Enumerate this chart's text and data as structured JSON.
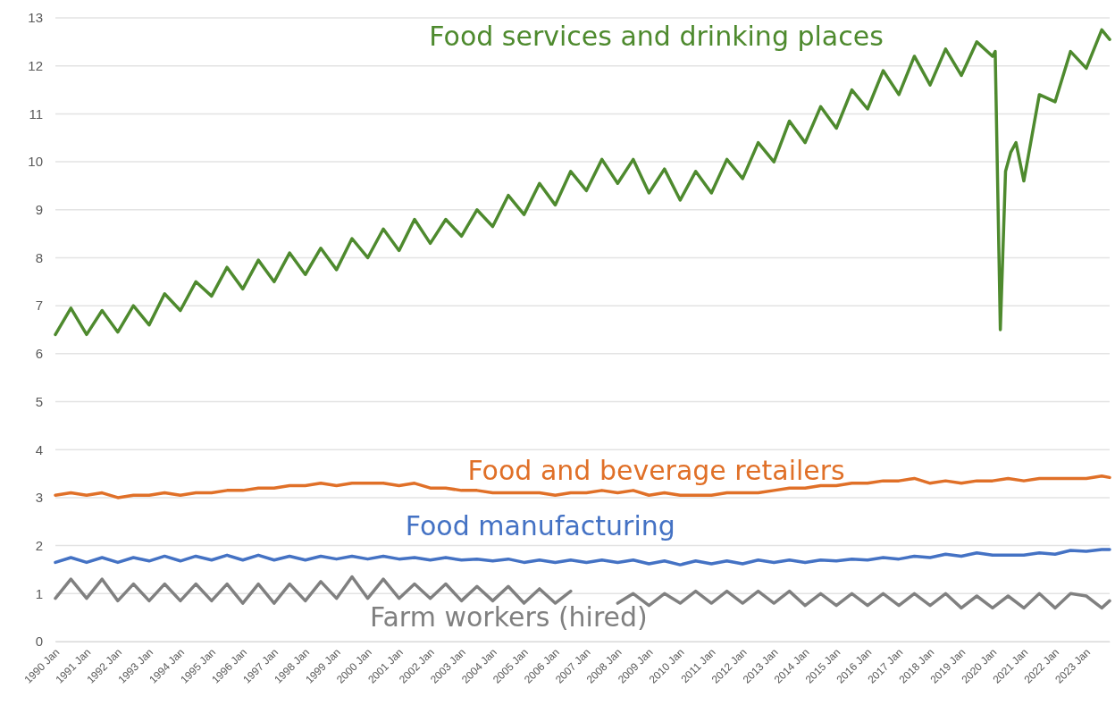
{
  "chart_data": {
    "type": "line",
    "legend": false,
    "grid": "y",
    "line_style": "solid",
    "marker": "none",
    "xlim": [
      "1990-01",
      "2023-10"
    ],
    "ylim": [
      0,
      13
    ],
    "yticks": [
      0,
      1,
      2,
      3,
      4,
      5,
      6,
      7,
      8,
      9,
      10,
      11,
      12,
      13
    ],
    "xticks": [
      {
        "value": "1990-01",
        "label": "1990 Jan"
      },
      {
        "value": "1991-01",
        "label": "1991 Jan"
      },
      {
        "value": "1992-01",
        "label": "1992 Jan"
      },
      {
        "value": "1993-01",
        "label": "1993 Jan"
      },
      {
        "value": "1994-01",
        "label": "1994 Jan"
      },
      {
        "value": "1995-01",
        "label": "1995 Jan"
      },
      {
        "value": "1996-01",
        "label": "1996 Jan"
      },
      {
        "value": "1997-01",
        "label": "1997 Jan"
      },
      {
        "value": "1998-01",
        "label": "1998 Jan"
      },
      {
        "value": "1999-01",
        "label": "1999 Jan"
      },
      {
        "value": "2000-01",
        "label": "2000 Jan"
      },
      {
        "value": "2001-01",
        "label": "2001 Jan"
      },
      {
        "value": "2002-01",
        "label": "2002 Jan"
      },
      {
        "value": "2003-01",
        "label": "2003 Jan"
      },
      {
        "value": "2004-01",
        "label": "2004 Jan"
      },
      {
        "value": "2005-01",
        "label": "2005 Jan"
      },
      {
        "value": "2006-01",
        "label": "2006 Jan"
      },
      {
        "value": "2007-01",
        "label": "2007 Jan"
      },
      {
        "value": "2008-01",
        "label": "2008 Jan"
      },
      {
        "value": "2009-01",
        "label": "2009 Jan"
      },
      {
        "value": "2010-01",
        "label": "2010 Jan"
      },
      {
        "value": "2011-01",
        "label": "2011 Jan"
      },
      {
        "value": "2012-01",
        "label": "2012 Jan"
      },
      {
        "value": "2013-01",
        "label": "2013 Jan"
      },
      {
        "value": "2014-01",
        "label": "2014 Jan"
      },
      {
        "value": "2015-01",
        "label": "2015 Jan"
      },
      {
        "value": "2016-01",
        "label": "2016 Jan"
      },
      {
        "value": "2017-01",
        "label": "2017 Jan"
      },
      {
        "value": "2018-01",
        "label": "2018 Jan"
      },
      {
        "value": "2019-01",
        "label": "2019 Jan"
      },
      {
        "value": "2020-01",
        "label": "2020 Jan"
      },
      {
        "value": "2021-01",
        "label": "2021 Jan"
      },
      {
        "value": "2022-01",
        "label": "2022 Jan"
      },
      {
        "value": "2023-01",
        "label": "2023 Jan"
      }
    ],
    "x": [
      "1990-01",
      "1990-07",
      "1991-01",
      "1991-07",
      "1992-01",
      "1992-07",
      "1993-01",
      "1993-07",
      "1994-01",
      "1994-07",
      "1995-01",
      "1995-07",
      "1996-01",
      "1996-07",
      "1997-01",
      "1997-07",
      "1998-01",
      "1998-07",
      "1999-01",
      "1999-07",
      "2000-01",
      "2000-07",
      "2001-01",
      "2001-07",
      "2002-01",
      "2002-07",
      "2003-01",
      "2003-07",
      "2004-01",
      "2004-07",
      "2005-01",
      "2005-07",
      "2006-01",
      "2006-07",
      "2007-01",
      "2007-07",
      "2008-01",
      "2008-07",
      "2009-01",
      "2009-07",
      "2010-01",
      "2010-07",
      "2011-01",
      "2011-07",
      "2012-01",
      "2012-07",
      "2013-01",
      "2013-07",
      "2014-01",
      "2014-07",
      "2015-01",
      "2015-07",
      "2016-01",
      "2016-07",
      "2017-01",
      "2017-07",
      "2018-01",
      "2018-07",
      "2019-01",
      "2019-07",
      "2020-01",
      "2020-07",
      "2021-01",
      "2021-07",
      "2022-01",
      "2022-07",
      "2023-01",
      "2023-07",
      "2023-10"
    ],
    "series": [
      {
        "name": "Food services and drinking places",
        "color": "#4e8a2e",
        "x": [
          "1990-01",
          "1990-07",
          "1991-01",
          "1991-07",
          "1992-01",
          "1992-07",
          "1993-01",
          "1993-07",
          "1994-01",
          "1994-07",
          "1995-01",
          "1995-07",
          "1996-01",
          "1996-07",
          "1997-01",
          "1997-07",
          "1998-01",
          "1998-07",
          "1999-01",
          "1999-07",
          "2000-01",
          "2000-07",
          "2001-01",
          "2001-07",
          "2002-01",
          "2002-07",
          "2003-01",
          "2003-07",
          "2004-01",
          "2004-07",
          "2005-01",
          "2005-07",
          "2006-01",
          "2006-07",
          "2007-01",
          "2007-07",
          "2008-01",
          "2008-07",
          "2009-01",
          "2009-07",
          "2010-01",
          "2010-07",
          "2011-01",
          "2011-07",
          "2012-01",
          "2012-07",
          "2013-01",
          "2013-07",
          "2014-01",
          "2014-07",
          "2015-01",
          "2015-07",
          "2016-01",
          "2016-07",
          "2017-01",
          "2017-07",
          "2018-01",
          "2018-07",
          "2019-01",
          "2019-07",
          "2020-01",
          "2020-02",
          "2020-04",
          "2020-06",
          "2020-08",
          "2020-10",
          "2021-01",
          "2021-07",
          "2022-01",
          "2022-07",
          "2023-01",
          "2023-07",
          "2023-10"
        ],
        "values": [
          6.4,
          6.95,
          6.4,
          6.9,
          6.45,
          7.0,
          6.6,
          7.25,
          6.9,
          7.5,
          7.2,
          7.8,
          7.35,
          7.95,
          7.5,
          8.1,
          7.65,
          8.2,
          7.75,
          8.4,
          8.0,
          8.6,
          8.15,
          8.8,
          8.3,
          8.8,
          8.45,
          9.0,
          8.65,
          9.3,
          8.9,
          9.55,
          9.1,
          9.8,
          9.4,
          10.05,
          9.55,
          10.05,
          9.35,
          9.85,
          9.2,
          9.8,
          9.35,
          10.05,
          9.65,
          10.4,
          10.0,
          10.85,
          10.4,
          11.15,
          10.7,
          11.5,
          11.1,
          11.9,
          11.4,
          12.2,
          11.6,
          12.35,
          11.8,
          12.5,
          12.2,
          12.3,
          6.5,
          9.8,
          10.2,
          10.4,
          9.6,
          11.4,
          11.25,
          12.3,
          11.95,
          12.75,
          12.55
        ]
      },
      {
        "name": "Food and beverage retailers",
        "color": "#e07028",
        "values": [
          3.05,
          3.1,
          3.05,
          3.1,
          3.0,
          3.05,
          3.05,
          3.1,
          3.05,
          3.1,
          3.1,
          3.15,
          3.15,
          3.2,
          3.2,
          3.25,
          3.25,
          3.3,
          3.25,
          3.3,
          3.3,
          3.3,
          3.25,
          3.3,
          3.2,
          3.2,
          3.15,
          3.15,
          3.1,
          3.1,
          3.1,
          3.1,
          3.05,
          3.1,
          3.1,
          3.15,
          3.1,
          3.15,
          3.05,
          3.1,
          3.05,
          3.05,
          3.05,
          3.1,
          3.1,
          3.1,
          3.15,
          3.2,
          3.2,
          3.25,
          3.25,
          3.3,
          3.3,
          3.35,
          3.35,
          3.4,
          3.3,
          3.35,
          3.3,
          3.35,
          3.35,
          3.4,
          3.35,
          3.4,
          3.4,
          3.4,
          3.4,
          3.45,
          3.42
        ]
      },
      {
        "name": "Food manufacturing",
        "color": "#4472c4",
        "values": [
          1.65,
          1.75,
          1.65,
          1.75,
          1.65,
          1.75,
          1.68,
          1.78,
          1.68,
          1.78,
          1.7,
          1.8,
          1.7,
          1.8,
          1.7,
          1.78,
          1.7,
          1.78,
          1.72,
          1.78,
          1.72,
          1.78,
          1.72,
          1.75,
          1.7,
          1.75,
          1.7,
          1.72,
          1.68,
          1.72,
          1.65,
          1.7,
          1.65,
          1.7,
          1.65,
          1.7,
          1.65,
          1.7,
          1.62,
          1.68,
          1.6,
          1.68,
          1.62,
          1.68,
          1.62,
          1.7,
          1.65,
          1.7,
          1.65,
          1.7,
          1.68,
          1.72,
          1.7,
          1.75,
          1.72,
          1.78,
          1.75,
          1.82,
          1.78,
          1.85,
          1.8,
          1.8,
          1.8,
          1.85,
          1.82,
          1.9,
          1.88,
          1.92,
          1.92
        ]
      },
      {
        "name": "Farm workers (hired)",
        "color": "#808080",
        "values": [
          0.9,
          1.3,
          0.9,
          1.3,
          0.85,
          1.2,
          0.85,
          1.2,
          0.85,
          1.2,
          0.85,
          1.2,
          0.8,
          1.2,
          0.8,
          1.2,
          0.85,
          1.25,
          0.9,
          1.35,
          0.9,
          1.3,
          0.9,
          1.2,
          0.9,
          1.2,
          0.85,
          1.15,
          0.85,
          1.15,
          0.8,
          1.1,
          0.8,
          1.05,
          null,
          null,
          0.8,
          1.0,
          0.75,
          1.0,
          0.8,
          1.05,
          0.8,
          1.05,
          0.8,
          1.05,
          0.8,
          1.05,
          0.75,
          1.0,
          0.75,
          1.0,
          0.75,
          1.0,
          0.75,
          1.0,
          0.75,
          1.0,
          0.7,
          0.95,
          0.7,
          0.95,
          0.7,
          1.0,
          0.7,
          1.0,
          0.95,
          0.7,
          0.85
        ]
      }
    ]
  }
}
